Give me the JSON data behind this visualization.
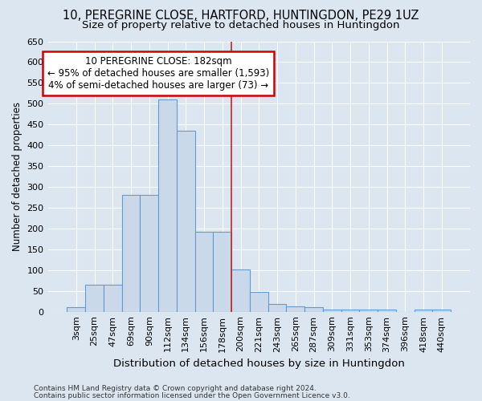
{
  "title1": "10, PEREGRINE CLOSE, HARTFORD, HUNTINGDON, PE29 1UZ",
  "title2": "Size of property relative to detached houses in Huntingdon",
  "xlabel": "Distribution of detached houses by size in Huntingdon",
  "ylabel": "Number of detached properties",
  "footnote1": "Contains HM Land Registry data © Crown copyright and database right 2024.",
  "footnote2": "Contains public sector information licensed under the Open Government Licence v3.0.",
  "bar_labels": [
    "3sqm",
    "25sqm",
    "47sqm",
    "69sqm",
    "90sqm",
    "112sqm",
    "134sqm",
    "156sqm",
    "178sqm",
    "200sqm",
    "221sqm",
    "243sqm",
    "265sqm",
    "287sqm",
    "309sqm",
    "331sqm",
    "353sqm",
    "374sqm",
    "396sqm",
    "418sqm",
    "440sqm"
  ],
  "bar_values": [
    10,
    65,
    65,
    280,
    280,
    510,
    435,
    192,
    192,
    102,
    47,
    18,
    12,
    10,
    5,
    5,
    5,
    5,
    0,
    5,
    5
  ],
  "bar_color": "#c9d9ea",
  "bar_edgecolor": "#6699cc",
  "property_line_index": 8,
  "annotation_line1": "10 PEREGRINE CLOSE: 182sqm",
  "annotation_line2": "← 95% of detached houses are smaller (1,593)",
  "annotation_line3": "4% of semi-detached houses are larger (73) →",
  "annotation_box_facecolor": "#ffffff",
  "annotation_box_edgecolor": "#cc0000",
  "vline_color": "#cc2222",
  "ylim_max": 650,
  "ytick_step": 50,
  "background_color": "#dce6f0",
  "grid_color": "#ffffff",
  "title1_fontsize": 10.5,
  "title2_fontsize": 9.5,
  "xlabel_fontsize": 9.5,
  "ylabel_fontsize": 8.5,
  "tick_fontsize": 8,
  "annotation_fontsize": 8.5,
  "footnote_fontsize": 6.5
}
